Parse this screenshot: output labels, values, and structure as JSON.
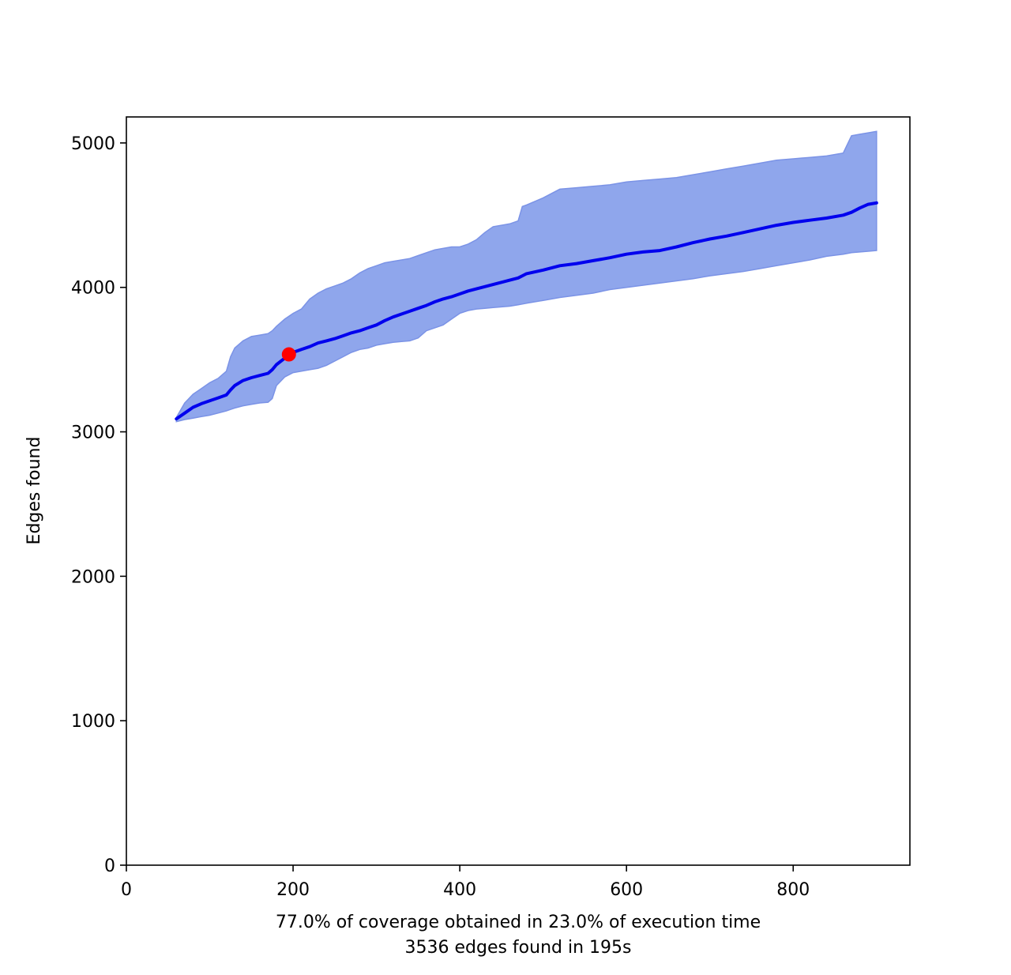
{
  "chart_data": {
    "type": "area",
    "title": "",
    "xlabel": "",
    "ylabel": "Edges found",
    "caption_lines": [
      "77.0% of coverage obtained in 23.0% of execution time",
      "3536 edges found in 195s"
    ],
    "xlim": [
      0,
      940
    ],
    "ylim": [
      0,
      5180
    ],
    "xticks": [
      0,
      200,
      400,
      600,
      800
    ],
    "yticks": [
      0,
      1000,
      2000,
      3000,
      4000,
      5000
    ],
    "grid": false,
    "legend": "none",
    "colors": {
      "mean_line": "#0000ee",
      "band_fill": "#8fa6ec",
      "band_edge": "#7b93e6",
      "marker": "#ff0000"
    },
    "x": [
      60,
      70,
      80,
      90,
      100,
      110,
      120,
      125,
      130,
      140,
      150,
      160,
      170,
      175,
      180,
      190,
      195,
      200,
      210,
      220,
      230,
      240,
      250,
      260,
      270,
      280,
      290,
      300,
      310,
      320,
      330,
      340,
      350,
      360,
      370,
      380,
      390,
      400,
      410,
      420,
      430,
      440,
      450,
      460,
      470,
      475,
      480,
      500,
      520,
      540,
      560,
      580,
      600,
      620,
      640,
      660,
      680,
      700,
      720,
      740,
      760,
      780,
      800,
      820,
      840,
      860,
      870,
      880,
      890,
      900
    ],
    "series": [
      {
        "role": "mean",
        "values": [
          3090,
          3130,
          3170,
          3195,
          3215,
          3235,
          3255,
          3290,
          3320,
          3355,
          3375,
          3390,
          3405,
          3430,
          3465,
          3510,
          3536,
          3550,
          3570,
          3590,
          3615,
          3630,
          3645,
          3665,
          3685,
          3700,
          3720,
          3740,
          3770,
          3795,
          3815,
          3835,
          3855,
          3875,
          3900,
          3920,
          3935,
          3955,
          3975,
          3990,
          4005,
          4020,
          4035,
          4050,
          4065,
          4080,
          4095,
          4120,
          4150,
          4165,
          4185,
          4205,
          4230,
          4245,
          4255,
          4280,
          4310,
          4335,
          4355,
          4380,
          4405,
          4430,
          4450,
          4465,
          4480,
          4500,
          4520,
          4550,
          4575,
          4585
        ]
      },
      {
        "role": "upper",
        "values": [
          3100,
          3200,
          3260,
          3300,
          3340,
          3370,
          3420,
          3520,
          3580,
          3630,
          3660,
          3670,
          3680,
          3700,
          3730,
          3780,
          3800,
          3820,
          3850,
          3920,
          3960,
          3990,
          4010,
          4030,
          4060,
          4100,
          4130,
          4150,
          4170,
          4180,
          4190,
          4200,
          4220,
          4240,
          4260,
          4270,
          4280,
          4280,
          4300,
          4330,
          4380,
          4420,
          4430,
          4440,
          4460,
          4560,
          4570,
          4620,
          4680,
          4690,
          4700,
          4710,
          4730,
          4740,
          4750,
          4760,
          4780,
          4800,
          4820,
          4840,
          4860,
          4880,
          4890,
          4900,
          4910,
          4930,
          5050,
          5060,
          5070,
          5080
        ]
      },
      {
        "role": "lower",
        "values": [
          3070,
          3085,
          3095,
          3105,
          3115,
          3130,
          3145,
          3155,
          3165,
          3180,
          3190,
          3200,
          3205,
          3230,
          3320,
          3380,
          3395,
          3410,
          3420,
          3430,
          3440,
          3460,
          3490,
          3520,
          3550,
          3570,
          3580,
          3600,
          3610,
          3620,
          3625,
          3630,
          3650,
          3700,
          3720,
          3740,
          3780,
          3820,
          3840,
          3850,
          3855,
          3860,
          3865,
          3870,
          3880,
          3885,
          3890,
          3910,
          3930,
          3945,
          3960,
          3985,
          4000,
          4015,
          4030,
          4045,
          4060,
          4080,
          4095,
          4110,
          4130,
          4150,
          4170,
          4190,
          4215,
          4230,
          4240,
          4245,
          4250,
          4255
        ]
      }
    ],
    "marker": {
      "x": 195,
      "y": 3536
    }
  }
}
